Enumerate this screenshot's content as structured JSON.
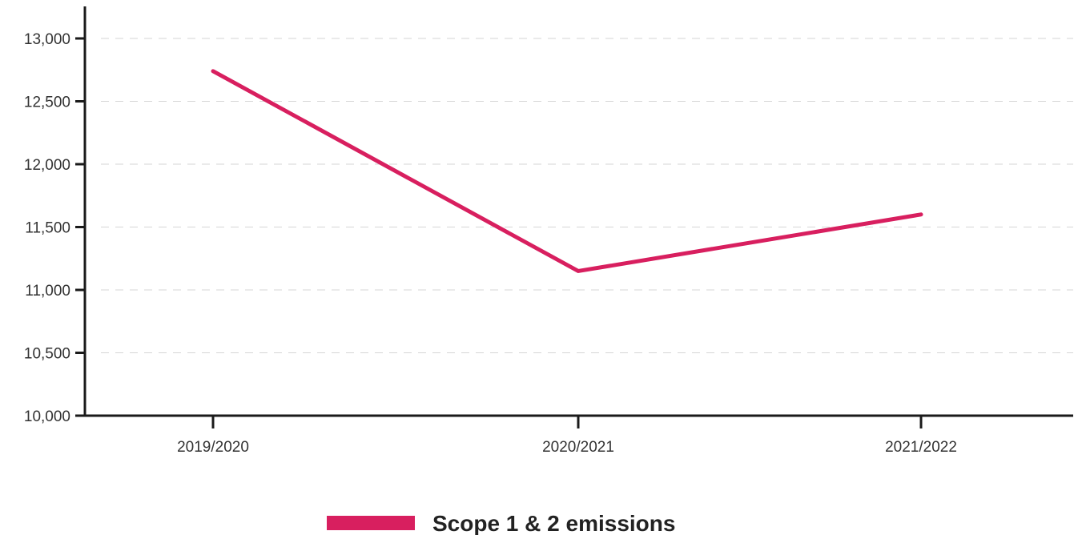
{
  "chart_data": {
    "type": "line",
    "title": "",
    "xlabel": "",
    "ylabel": "",
    "categories": [
      "2019/2020",
      "2020/2021",
      "2021/2022"
    ],
    "series": [
      {
        "name": "Scope 1 & 2 emissions",
        "color": "#d81f5f",
        "values": [
          12740,
          11150,
          11600
        ]
      }
    ],
    "ylim": [
      10000,
      13000
    ],
    "yticks": [
      10000,
      10500,
      11000,
      11500,
      12000,
      12500,
      13000
    ],
    "ytick_labels": [
      "10,000",
      "10,500",
      "11,000",
      "11,500",
      "12,000",
      "12,500",
      "13,000"
    ],
    "grid": true,
    "legend_position": "bottom-center"
  }
}
